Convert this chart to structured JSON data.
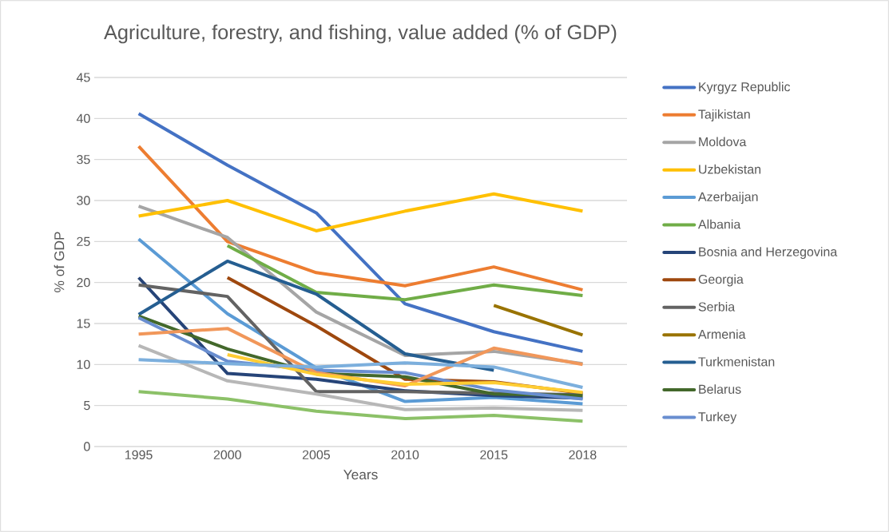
{
  "chart_data": {
    "type": "line",
    "title": "Agriculture, forestry, and fishing, value added (% of GDP)",
    "xlabel": "Years",
    "ylabel": "% of GDP",
    "categories": [
      "1995",
      "2000",
      "2005",
      "2010",
      "2015",
      "2018"
    ],
    "ylim": [
      0,
      45
    ],
    "yticks": [
      0,
      5,
      10,
      15,
      20,
      25,
      30,
      35,
      40,
      45
    ],
    "grid": "y",
    "legend": "right",
    "line_style": "solid",
    "marker": "none",
    "series": [
      {
        "name": "Kyrgyz Republic",
        "color": "#4472c4",
        "values": [
          40.6,
          34.3,
          28.5,
          17.4,
          14.0,
          11.6
        ]
      },
      {
        "name": "Tajikistan",
        "color": "#ed7d31",
        "values": [
          36.6,
          25.0,
          21.2,
          19.6,
          21.9,
          19.1
        ]
      },
      {
        "name": "Moldova",
        "color": "#a5a5a5",
        "values": [
          29.3,
          25.5,
          16.4,
          11.1,
          11.6,
          10.1
        ]
      },
      {
        "name": "Uzbekistan",
        "color": "#ffc000",
        "values": [
          28.1,
          30.0,
          26.3,
          28.7,
          30.8,
          28.7
        ]
      },
      {
        "name": "Azerbaijan",
        "color": "#5b9bd5",
        "values": [
          25.3,
          16.2,
          9.6,
          5.5,
          6.0,
          5.2
        ]
      },
      {
        "name": "Albania",
        "color": "#70ad47",
        "values": [
          null,
          24.5,
          18.8,
          17.9,
          19.7,
          18.4
        ]
      },
      {
        "name": "Bosnia and Herzegovina",
        "color": "#264478",
        "values": [
          20.6,
          8.9,
          8.2,
          6.8,
          6.2,
          5.9
        ]
      },
      {
        "name": "Georgia",
        "color": "#9e480e",
        "values": [
          null,
          20.6,
          14.7,
          8.2,
          7.9,
          6.5
        ]
      },
      {
        "name": "Serbia",
        "color": "#636363",
        "values": [
          19.7,
          18.3,
          6.7,
          6.7,
          6.5,
          6.3
        ]
      },
      {
        "name": "Armenia",
        "color": "#997300",
        "values": [
          null,
          null,
          null,
          null,
          17.2,
          13.6
        ]
      },
      {
        "name": "Turkmenistan",
        "color": "#255e91",
        "values": [
          16.1,
          22.6,
          18.6,
          11.3,
          9.3,
          null
        ]
      },
      {
        "name": "Belarus",
        "color": "#43682b",
        "values": [
          15.9,
          11.9,
          8.9,
          8.5,
          6.4,
          6.2
        ]
      },
      {
        "name": "Turkey",
        "color": "#698ed0",
        "values": [
          15.7,
          10.4,
          9.3,
          9.0,
          6.9,
          5.8
        ]
      },
      {
        "color": "#f1975a",
        "values": [
          13.7,
          14.4,
          9.0,
          7.4,
          12.0,
          10.0
        ]
      },
      {
        "color": "#b7b7b7",
        "values": [
          12.3,
          8.0,
          6.4,
          4.5,
          4.7,
          4.4
        ]
      },
      {
        "color": "#ffcd33",
        "values": [
          null,
          11.2,
          8.8,
          7.6,
          7.8,
          6.6
        ]
      },
      {
        "color": "#7cafdd",
        "values": [
          10.6,
          10.1,
          9.7,
          10.2,
          9.7,
          7.2
        ]
      },
      {
        "color": "#8cc168",
        "values": [
          6.7,
          5.8,
          4.3,
          3.4,
          3.8,
          3.1
        ]
      }
    ]
  }
}
